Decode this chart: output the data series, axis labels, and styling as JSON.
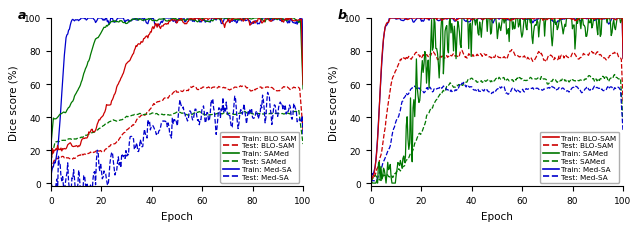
{
  "title_a": "a",
  "title_b": "b",
  "xlabel": "Epoch",
  "ylabel": "Dice score (%)",
  "ylim": [
    -2,
    100
  ],
  "xticks": [
    0,
    20,
    40,
    60,
    80,
    100
  ],
  "yticks": [
    0,
    20,
    40,
    60,
    80,
    100
  ],
  "colors": {
    "blosam": "#cc0000",
    "samed": "#007700",
    "medsa": "#0000cc"
  },
  "legend_a": [
    {
      "label": "Train: BLO SAM",
      "color": "#cc0000",
      "ls": "-"
    },
    {
      "label": "Test: BLO-SAM",
      "color": "#cc0000",
      "ls": "--"
    },
    {
      "label": "Train: SAMed",
      "color": "#007700",
      "ls": "-"
    },
    {
      "label": "Test: SAMed",
      "color": "#007700",
      "ls": "--"
    },
    {
      "label": "Train: Med-SA",
      "color": "#0000cc",
      "ls": "-"
    },
    {
      "label": "Test: Med-SA",
      "color": "#0000cc",
      "ls": "--"
    }
  ],
  "legend_b": [
    {
      "label": "Train: BLO-SAM",
      "color": "#cc0000",
      "ls": "-"
    },
    {
      "label": "Test: BLO-SAM",
      "color": "#cc0000",
      "ls": "--"
    },
    {
      "label": "Train: SAMed",
      "color": "#007700",
      "ls": "-"
    },
    {
      "label": "Test: SAMed",
      "color": "#007700",
      "ls": "--"
    },
    {
      "label": "Train: Med-SA",
      "color": "#0000cc",
      "ls": "-"
    },
    {
      "label": "Test: Med-SA",
      "color": "#0000cc",
      "ls": "--"
    }
  ],
  "fig_width": 6.4,
  "fig_height": 2.3,
  "dpi": 100
}
